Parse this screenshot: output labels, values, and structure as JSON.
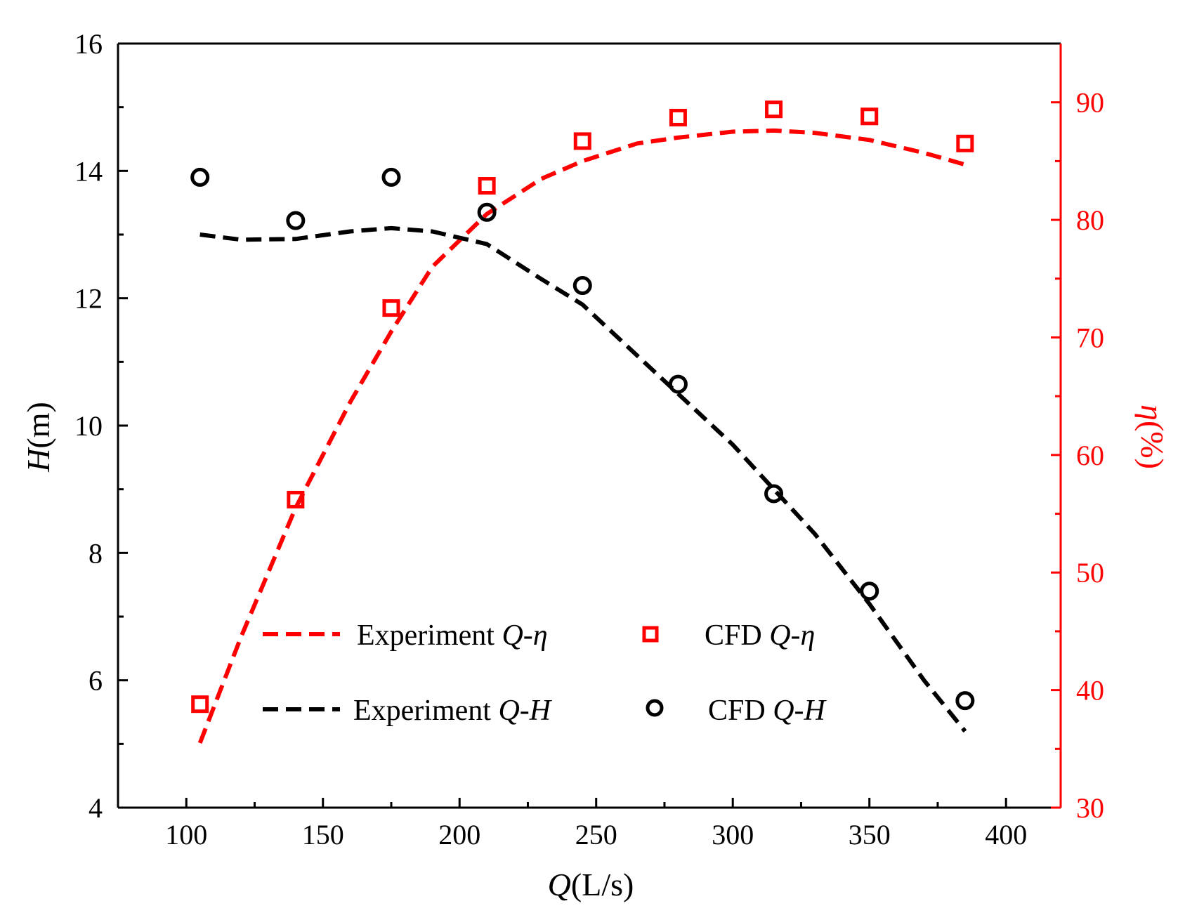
{
  "chart_data": {
    "type": "line",
    "xlabel": {
      "var": "Q",
      "unit": "(L/s)"
    },
    "ylabel_left": {
      "var": "H",
      "unit": "(m)"
    },
    "ylabel_right": {
      "var": "η",
      "unit": "(%)"
    },
    "xlim": [
      75,
      420
    ],
    "ylim_left": [
      4,
      16
    ],
    "ylim_right": [
      30,
      95
    ],
    "x_ticks": [
      100,
      150,
      200,
      250,
      300,
      350,
      400
    ],
    "y_ticks_left": [
      4,
      6,
      8,
      10,
      12,
      14,
      16
    ],
    "y_ticks_right": [
      30,
      40,
      50,
      60,
      70,
      80,
      90
    ],
    "grid": false,
    "legend_position": "bottom-center",
    "colors": {
      "left_axis": "#000000",
      "right_axis": "#ff0000",
      "eta": "#ff0000",
      "head": "#000000"
    },
    "series": [
      {
        "name": "Experiment",
        "name_var": "Q-η",
        "axis": "right",
        "style": "dashed-line",
        "color": "#ff0000",
        "x": [
          105,
          120,
          140,
          160,
          175,
          190,
          210,
          230,
          245,
          265,
          280,
          300,
          315,
          330,
          350,
          370,
          385
        ],
        "y": [
          35.5,
          44.5,
          55.5,
          64.5,
          70.5,
          76.0,
          80.5,
          83.5,
          85.0,
          86.5,
          87.0,
          87.5,
          87.6,
          87.4,
          86.8,
          85.7,
          84.7
        ]
      },
      {
        "name": "CFD",
        "name_var": "Q-η",
        "axis": "right",
        "style": "square-markers",
        "color": "#ff0000",
        "x": [
          105,
          140,
          175,
          210,
          245,
          280,
          315,
          350,
          385
        ],
        "y": [
          38.8,
          56.2,
          72.5,
          82.9,
          86.7,
          88.7,
          89.4,
          88.8,
          86.5
        ]
      },
      {
        "name": "Experiment",
        "name_var": "Q-H",
        "axis": "left",
        "style": "dashed-line",
        "color": "#000000",
        "x": [
          105,
          120,
          140,
          160,
          175,
          190,
          210,
          230,
          245,
          265,
          280,
          300,
          315,
          330,
          350,
          370,
          385
        ],
        "y": [
          13.0,
          12.92,
          12.93,
          13.05,
          13.1,
          13.05,
          12.85,
          12.3,
          11.9,
          11.1,
          10.5,
          9.7,
          9.0,
          8.3,
          7.2,
          6.0,
          5.2
        ]
      },
      {
        "name": "CFD",
        "name_var": "Q-H",
        "axis": "left",
        "style": "circle-markers",
        "color": "#000000",
        "x": [
          105,
          140,
          175,
          210,
          245,
          280,
          315,
          350,
          385
        ],
        "y": [
          13.9,
          13.22,
          13.9,
          13.35,
          12.2,
          10.65,
          8.93,
          7.4,
          5.68
        ]
      }
    ]
  }
}
